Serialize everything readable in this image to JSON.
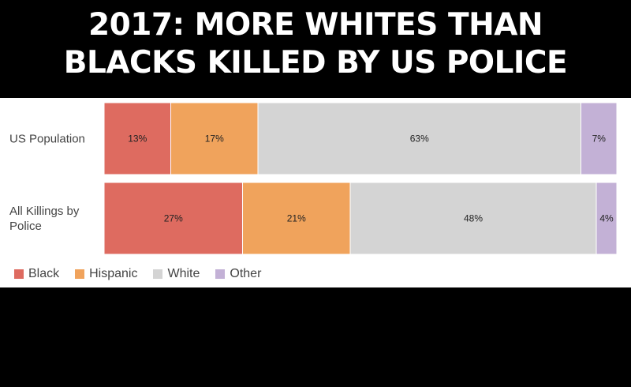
{
  "headline": {
    "line1": "2017:  MORE WHITES THAN",
    "line2": "BLACKS KILLED BY US POLICE"
  },
  "colors": {
    "Black": "#de6b60",
    "Hispanic": "#f0a35c",
    "White": "#d4d4d4",
    "Other": "#c3b1d6"
  },
  "chart_data": {
    "type": "bar",
    "orientation": "horizontal",
    "stacked": true,
    "normalized": true,
    "categories": [
      [
        "US Population"
      ],
      [
        "All Killings by",
        "Police"
      ]
    ],
    "series": [
      {
        "name": "Black",
        "values": [
          13,
          27
        ],
        "labels": [
          "13%",
          "27%"
        ]
      },
      {
        "name": "Hispanic",
        "values": [
          17,
          21
        ],
        "labels": [
          "17%",
          "21%"
        ]
      },
      {
        "name": "White",
        "values": [
          63,
          48
        ],
        "labels": [
          "63%",
          "48%"
        ]
      },
      {
        "name": "Other",
        "values": [
          7,
          4
        ],
        "labels": [
          "7%",
          "4%"
        ]
      }
    ],
    "xlim": [
      0,
      100
    ],
    "grid": false,
    "legend": "bottom-left"
  }
}
